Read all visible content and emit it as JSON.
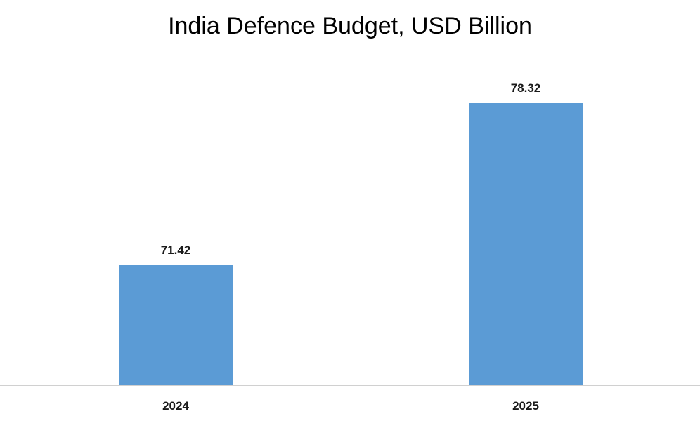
{
  "chart_data": {
    "type": "bar",
    "title": "India Defence Budget, USD Billion",
    "xlabel": "",
    "ylabel": "",
    "categories": [
      "2024",
      "2025"
    ],
    "values": [
      71.42,
      78.32
    ],
    "value_labels": [
      "71.42",
      "78.32"
    ],
    "bar_color": "#5b9bd5",
    "axis_color": "#d0d0d0",
    "grid": false,
    "legend": "none"
  }
}
